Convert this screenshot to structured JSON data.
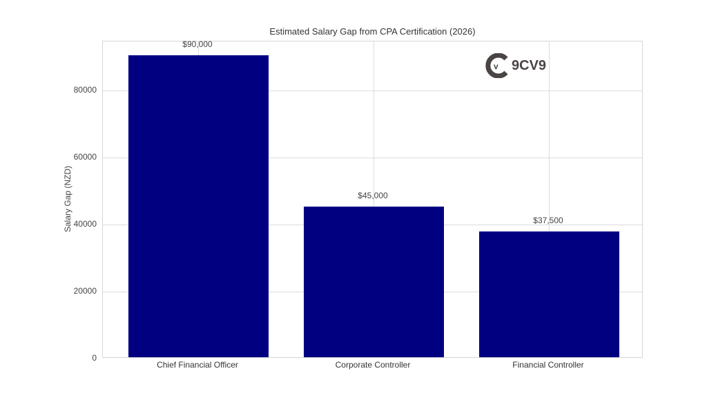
{
  "chart_data": {
    "type": "bar",
    "title": "Estimated Salary Gap from CPA Certification (2026)",
    "xlabel": "",
    "ylabel": "Salary Gap (NZD)",
    "categories": [
      "Chief Financial Officer",
      "Corporate Controller",
      "Financial Controller"
    ],
    "values": [
      90000,
      45000,
      37500
    ],
    "value_labels": [
      "$90,000",
      "$45,000",
      "$37,500"
    ],
    "yticks": [
      0,
      20000,
      40000,
      60000,
      80000
    ],
    "ytick_labels": [
      "0",
      "20000",
      "40000",
      "60000",
      "80000"
    ],
    "ylim": [
      0,
      94600
    ],
    "grid": true,
    "bar_color": "#000080",
    "legend": null
  },
  "watermark": {
    "text": "9CV9",
    "color": "#4a4443"
  }
}
